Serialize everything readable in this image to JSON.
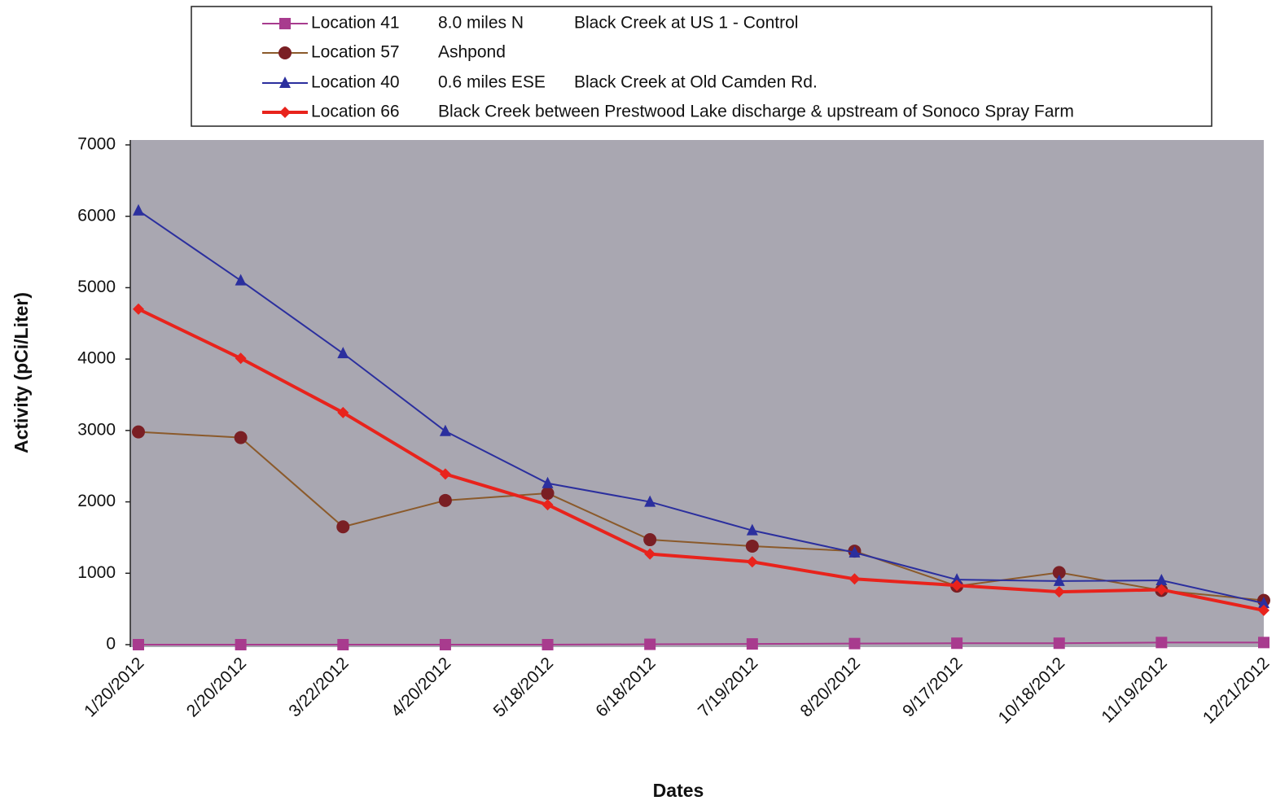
{
  "chart_data": {
    "type": "line",
    "x_label": "Dates",
    "y_label": "Activity (pCi/Liter)",
    "categories": [
      "1/20/2012",
      "2/20/2012",
      "3/22/2012",
      "4/20/2012",
      "5/18/2012",
      "6/18/2012",
      "7/19/2012",
      "8/20/2012",
      "9/17/2012",
      "10/18/2012",
      "11/19/2012",
      "12/21/2012"
    ],
    "ylim": [
      0,
      7000
    ],
    "yticks": [
      0,
      1000,
      2000,
      3000,
      4000,
      5000,
      6000,
      7000
    ],
    "plot_background": "#a9a7b1",
    "legend": "top",
    "series": [
      {
        "name": "Location 41",
        "details": [
          "8.0 miles N",
          "Black Creek at US 1 - Control"
        ],
        "color": "#a83b8e",
        "marker": "square",
        "line_width": 2,
        "values": [
          0,
          0,
          0,
          0,
          0,
          5,
          10,
          15,
          20,
          20,
          30,
          30
        ]
      },
      {
        "name": "Location 57",
        "details": [
          "Ashpond"
        ],
        "color": "#8b5a2b",
        "marker_color": "#7a1f24",
        "marker": "circle",
        "line_width": 2,
        "values": [
          2980,
          2900,
          1650,
          2020,
          2120,
          1470,
          1380,
          1310,
          820,
          1010,
          760,
          620
        ]
      },
      {
        "name": "Location 40",
        "details": [
          "0.6 miles ESE",
          "Black Creek at Old Camden Rd."
        ],
        "color": "#2b2f9e",
        "marker": "triangle",
        "line_width": 2,
        "values": [
          6080,
          5100,
          4080,
          2990,
          2260,
          2000,
          1600,
          1290,
          910,
          890,
          900,
          580
        ]
      },
      {
        "name": "Location 66",
        "details": [
          "Black Creek between Prestwood Lake discharge & upstream of Sonoco Spray Farm"
        ],
        "color": "#e8231c",
        "marker": "diamond",
        "line_width": 4,
        "values": [
          4700,
          4010,
          3250,
          2390,
          1960,
          1270,
          1160,
          920,
          830,
          740,
          770,
          480
        ]
      }
    ]
  }
}
